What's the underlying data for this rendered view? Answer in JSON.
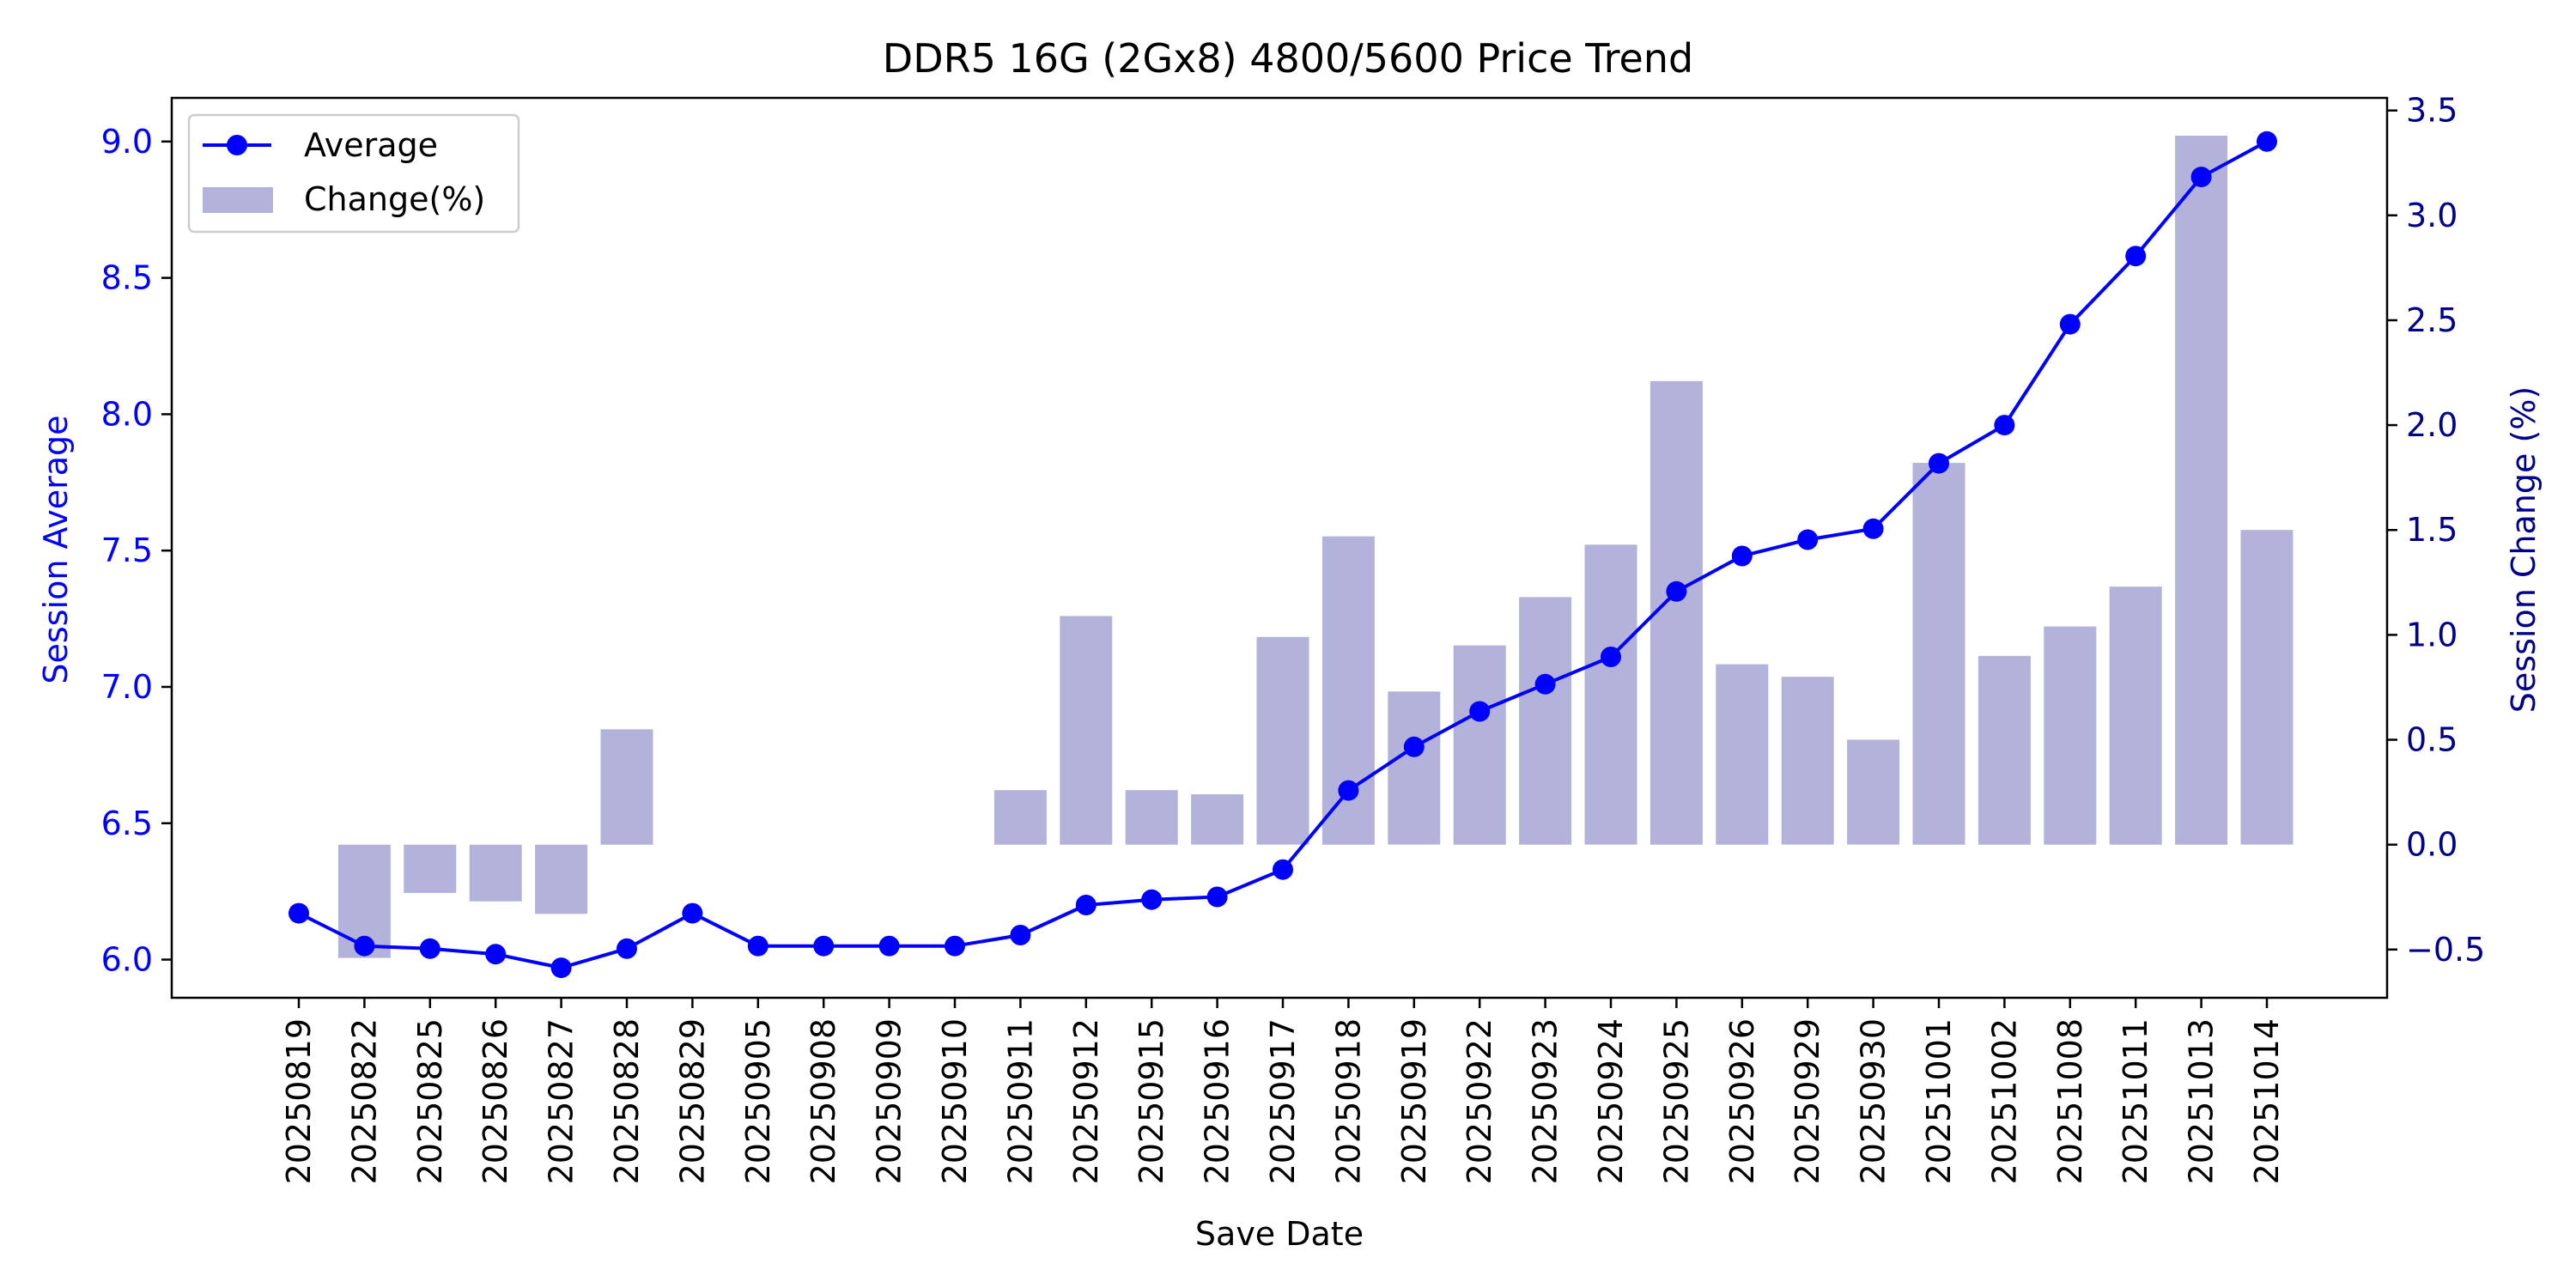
{
  "chart_data": {
    "type": "bar",
    "title": "DDR5 16G (2Gx8) 4800/5600 Price Trend",
    "xlabel": "Save Date",
    "ylabel_left": "Session Average",
    "ylabel_right": "Session Change (%)",
    "categories": [
      "20250819",
      "20250822",
      "20250825",
      "20250826",
      "20250827",
      "20250828",
      "20250829",
      "20250905",
      "20250908",
      "20250909",
      "20250910",
      "20250911",
      "20250912",
      "20250915",
      "20250916",
      "20250917",
      "20250918",
      "20250919",
      "20250922",
      "20250923",
      "20250924",
      "20250925",
      "20250926",
      "20250929",
      "20250930",
      "20251001",
      "20251002",
      "20251008",
      "20251011",
      "20251013",
      "20251014"
    ],
    "series": [
      {
        "name": "Average",
        "kind": "line",
        "axis": "left",
        "color": "#0000ff",
        "values": [
          6.17,
          6.05,
          6.04,
          6.02,
          5.97,
          6.04,
          6.17,
          6.05,
          6.05,
          6.05,
          6.05,
          6.09,
          6.2,
          6.22,
          6.23,
          6.33,
          6.62,
          6.78,
          6.91,
          7.01,
          7.11,
          7.35,
          7.48,
          7.54,
          7.58,
          7.82,
          7.96,
          8.33,
          8.58,
          8.87,
          9.0
        ]
      },
      {
        "name": "Change(%)",
        "kind": "bar",
        "axis": "right",
        "color": "#b2b2da",
        "values": [
          0,
          -0.54,
          -0.23,
          -0.27,
          -0.33,
          0.55,
          0,
          0,
          0,
          0,
          0,
          0.26,
          1.09,
          0.26,
          0.24,
          0.99,
          1.47,
          0.73,
          0.95,
          1.18,
          1.43,
          2.21,
          0.86,
          0.8,
          0.5,
          1.82,
          0.9,
          1.04,
          1.23,
          3.38,
          1.5
        ]
      }
    ],
    "ylim_left": [
      5.86,
      9.16
    ],
    "yticks_left": [
      "6.0",
      "6.5",
      "7.0",
      "7.5",
      "8.0",
      "8.5",
      "9.0"
    ],
    "ylim_right": [
      -0.73,
      3.56
    ],
    "yticks_right": [
      "−0.5",
      "0.0",
      "0.5",
      "1.0",
      "1.5",
      "2.0",
      "2.5",
      "3.0",
      "3.5"
    ],
    "left_axis_color": "#0000ff",
    "right_axis_color": "#00008b",
    "grid": false,
    "legend_position": "upper left"
  }
}
